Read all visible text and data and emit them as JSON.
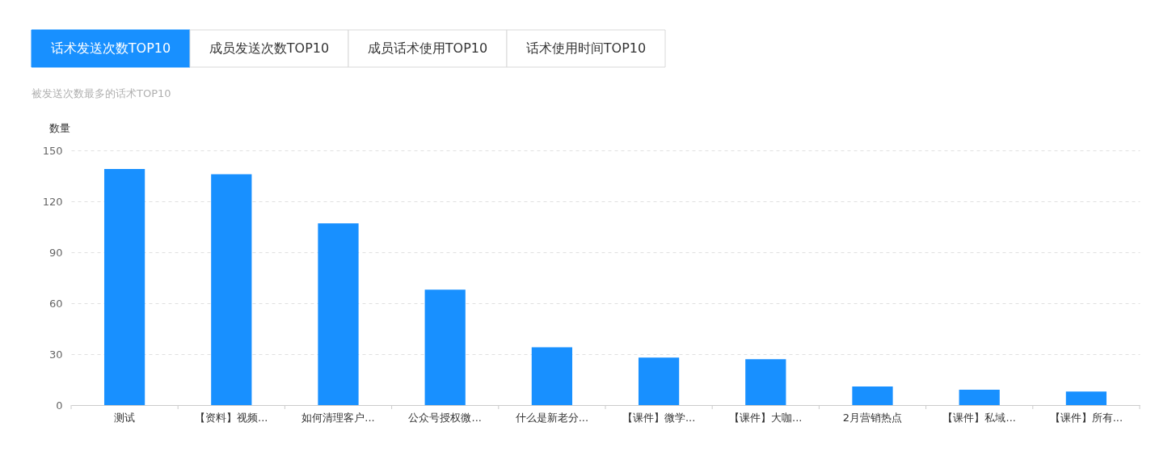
{
  "chart_data": {
    "type": "bar",
    "title": "话术发送次数TOP10",
    "subtitle": "被发送次数最多的话术TOP10",
    "ylabel": "数量",
    "annotations": [
      "成员发送次数TOP10",
      "成员话术使用TOP10",
      "话术使用时间TOP10"
    ],
    "categories": [
      "测试",
      "【资料】视频...",
      "如何清理客户...",
      "公众号授权微...",
      "什么是新老分...",
      "【课件】微学...",
      "【课件】大咖...",
      "2月营销热点",
      "【课件】私域...",
      "【课件】所有..."
    ],
    "values": [
      139,
      136,
      107,
      68,
      34,
      28,
      27,
      11,
      9,
      8
    ],
    "color": "#1890ff",
    "ylim": [
      0,
      150
    ],
    "yticks": [
      0,
      30,
      60,
      90,
      120,
      150
    ],
    "grid": "y"
  }
}
